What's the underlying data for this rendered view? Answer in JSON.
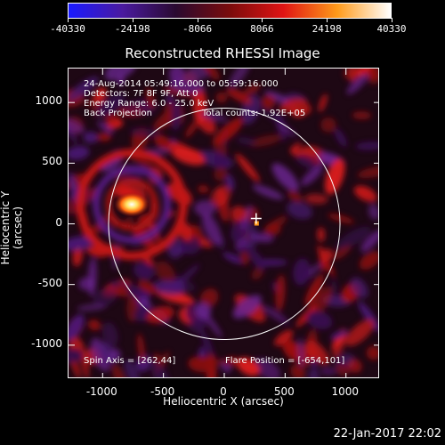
{
  "colorbar": {
    "colors": [
      "#1a1aff",
      "#4a1aa0",
      "#2a0a30",
      "#7a0c0c",
      "#e01414",
      "#ff9a1a",
      "#ffffff"
    ],
    "ticks": [
      "-40330",
      "-24198",
      "-8066",
      "8066",
      "24198",
      "40330"
    ]
  },
  "chart_data": {
    "type": "heatmap",
    "title": "Reconstructed RHESSI Image",
    "xlabel": "Heliocentric X (arcsec)",
    "ylabel": "Heliocentric Y (arcsec)",
    "xlim": [
      -1280,
      1280
    ],
    "ylim": [
      -1280,
      1280
    ],
    "xticks": [
      -1000,
      -500,
      0,
      500,
      1000
    ],
    "yticks": [
      -1000,
      -500,
      0,
      500,
      1000
    ],
    "solar_limb_radius": 951,
    "marker_position": [
      262,
      44
    ],
    "hot_source": {
      "x": -760,
      "y": 160,
      "level": "high"
    }
  },
  "annotations": {
    "time_range": "24-Aug-2014 05:49:16.000 to 05:59:16.000",
    "detectors": "Detectors: 7F 8F 9F, Att 0",
    "energy": "Energy Range: 6.0 - 25.0 keV",
    "method": "Back Projection",
    "counts": "Total counts: 1.92E+05",
    "spin_axis": "Spin Axis = [262,44]",
    "flare_position": "Flare Position = [-654,101]"
  },
  "footer": {
    "date": "22-Jan-2017 22:02"
  }
}
